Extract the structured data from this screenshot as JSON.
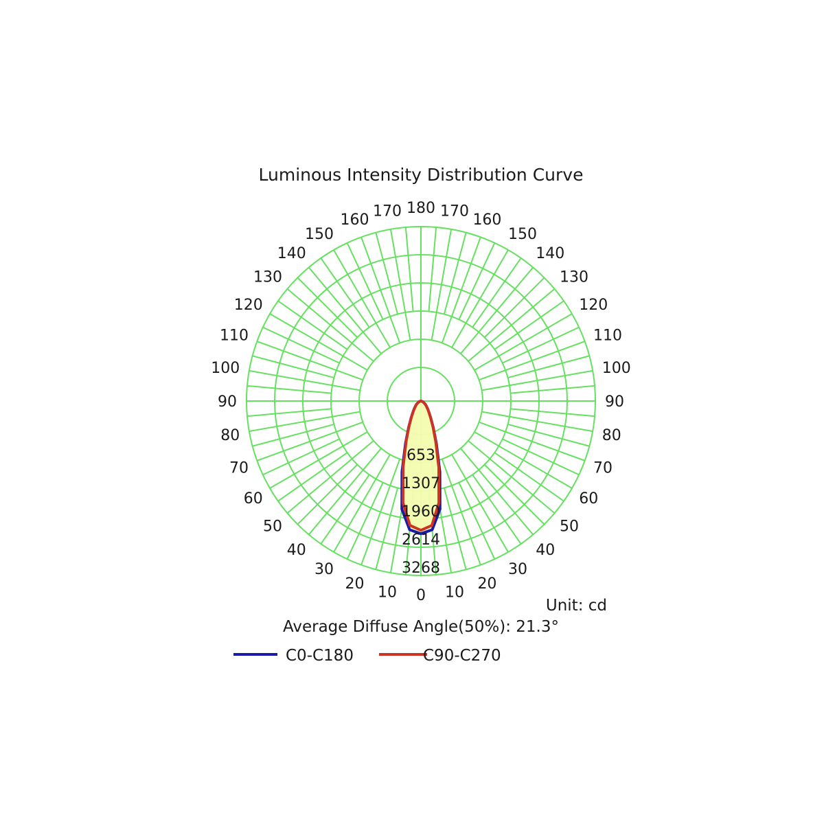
{
  "chart_data": {
    "type": "polar-line",
    "title": "Luminous Intensity Distribution Curve",
    "radial_ticks": [
      653,
      1307,
      1960,
      2614,
      3268
    ],
    "radial_max": 3268,
    "angle_labels_left": [
      "0",
      "10",
      "20",
      "30",
      "40",
      "50",
      "60",
      "70",
      "80",
      "90",
      "100",
      "110",
      "120",
      "130",
      "140",
      "150",
      "160",
      "170",
      "180"
    ],
    "angle_labels_right": [
      "10",
      "20",
      "30",
      "40",
      "50",
      "60",
      "70",
      "80",
      "90",
      "100",
      "110",
      "120",
      "130",
      "140",
      "150",
      "160",
      "170"
    ],
    "unit": "Unit: cd",
    "average_angle_text": "Average Diffuse Angle(50%): 21.3°",
    "series": [
      {
        "name": "C0-C180",
        "color": "#1a1aa8",
        "angles": [
          0,
          5,
          10,
          15,
          20,
          25,
          30,
          35,
          40,
          45,
          50,
          55,
          60,
          65,
          70,
          75,
          80,
          85,
          90
        ],
        "values": [
          3080,
          3000,
          2550,
          1700,
          1050,
          680,
          460,
          330,
          250,
          190,
          150,
          115,
          85,
          60,
          40,
          20,
          8,
          2,
          0
        ]
      },
      {
        "name": "C90-C270",
        "color": "#cc3322",
        "angles": [
          0,
          5,
          10,
          15,
          20,
          25,
          30,
          35,
          40,
          45,
          50,
          55,
          60,
          65,
          70,
          75,
          80,
          85,
          90
        ],
        "values": [
          3000,
          2900,
          2400,
          1600,
          1000,
          660,
          450,
          325,
          245,
          185,
          148,
          112,
          82,
          58,
          38,
          18,
          7,
          2,
          0
        ]
      }
    ],
    "grid_color": "#66e060",
    "fill_color": "#f4fbb0"
  }
}
